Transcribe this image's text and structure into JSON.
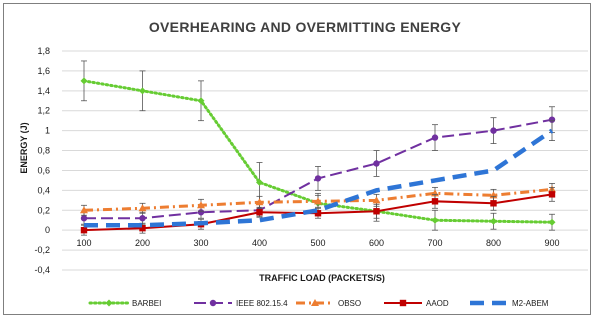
{
  "chart_data": {
    "type": "line",
    "title": "OVERHEARING AND OVERMITTING ENERGY",
    "xlabel": "TRAFFIC LOAD (PACKETS/S)",
    "ylabel": "ENERGY (J)",
    "categories": [
      "100",
      "200",
      "300",
      "400",
      "500",
      "600",
      "700",
      "800",
      "900"
    ],
    "ylim": [
      -0.4,
      1.8
    ],
    "yticks": [
      "-0,4",
      "-0,2",
      "0",
      "0,2",
      "0,4",
      "0,6",
      "0,8",
      "1",
      "1,2",
      "1,4",
      "1,6",
      "1,8"
    ],
    "grid": "horizontal",
    "legend_position": "bottom",
    "series": [
      {
        "name": "BARBEI",
        "color": "#66cc33",
        "style": "dotted",
        "marker": "diamond",
        "values": [
          1.5,
          1.4,
          1.3,
          0.48,
          0.27,
          0.19,
          0.1,
          0.09,
          0.08
        ],
        "error": [
          0.2,
          0.2,
          0.2,
          0.2,
          0.1,
          0.1,
          0.1,
          0.08,
          0.08
        ]
      },
      {
        "name": "IEEE 802.15.4",
        "color": "#7030a0",
        "style": "long-dash",
        "marker": "circle",
        "values": [
          0.12,
          0.12,
          0.18,
          0.2,
          0.52,
          0.67,
          0.93,
          1.0,
          1.11
        ],
        "error": [
          0.06,
          0.06,
          0.06,
          0.06,
          0.12,
          0.13,
          0.13,
          0.13,
          0.13
        ]
      },
      {
        "name": "OBSO",
        "color": "#ed7d31",
        "style": "dash-dot",
        "marker": "triangle",
        "values": [
          0.2,
          0.22,
          0.25,
          0.28,
          0.29,
          0.3,
          0.37,
          0.35,
          0.41
        ],
        "error": [
          0.05,
          0.05,
          0.06,
          0.06,
          0.06,
          0.06,
          0.06,
          0.06,
          0.06
        ]
      },
      {
        "name": "AAOD",
        "color": "#c00000",
        "style": "solid",
        "marker": "square",
        "values": [
          0.0,
          0.02,
          0.06,
          0.18,
          0.17,
          0.19,
          0.29,
          0.27,
          0.36
        ],
        "error": [
          0.05,
          0.05,
          0.05,
          0.05,
          0.05,
          0.07,
          0.07,
          0.07,
          0.07
        ]
      },
      {
        "name": "M2-ABEM",
        "color": "#2e75d6",
        "style": "heavy-dash",
        "marker": "none",
        "values": [
          0.05,
          0.05,
          0.07,
          0.1,
          0.2,
          0.4,
          0.5,
          0.6,
          1.0
        ],
        "error": [
          0,
          0,
          0,
          0,
          0,
          0,
          0,
          0,
          0.1
        ]
      }
    ]
  }
}
